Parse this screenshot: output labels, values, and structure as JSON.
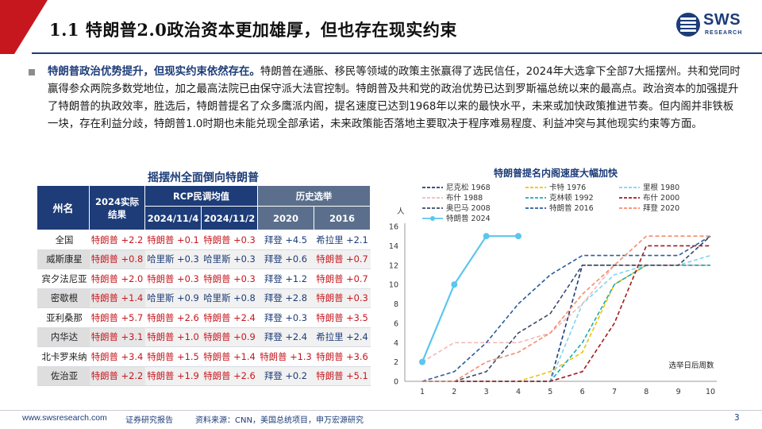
{
  "header": {
    "title": "1.1 特朗普2.0政治资本更加雄厚，但也存在现实约束",
    "logo_text": "SWS",
    "logo_sub": "RESEARCH"
  },
  "summary": {
    "lead": "特朗普政治优势提升，但现实约束依然存在。",
    "body": "特朗普在通胀、移民等领域的政策主张赢得了选民信任，2024年大选拿下全部7大摇摆州。共和党同时赢得参众两院多数党地位，加之最高法院已由保守派大法官控制。特朗普及共和党的政治优势已达到罗斯福总统以来的最高点。政治资本的加强提升了特朗普的执政效率，胜选后，特朗普提名了众多鹰派内阁，提名速度已达到1968年以来的最快水平，未来或加快政策推进节奏。但内阁并非铁板一块，存在利益分歧，特朗普1.0时期也未能兑现全部承诺，未来政策能否落地主要取决于程序难易程度、利益冲突与其他现实约束等方面。"
  },
  "table": {
    "title": "摇摆州全面倒向特朗普",
    "headers": {
      "state": "州名",
      "result_2024": "2024实际结果",
      "rcp": "RCP民调均值",
      "history": "历史选举",
      "rcp_1": "2024/11/4",
      "rcp_2": "2024/11/2",
      "hist_1": "2020",
      "hist_2": "2016"
    },
    "rows": [
      {
        "state": "全国",
        "r2024": "特朗普 +2.2",
        "p1": "特朗普 +0.1",
        "p2": "特朗普 +0.3",
        "h2020": "拜登 +4.5",
        "h2016": "希拉里 +2.1"
      },
      {
        "state": "威斯康星",
        "r2024": "特朗普 +0.8",
        "p1": "哈里斯 +0.3",
        "p2": "哈里斯 +0.3",
        "h2020": "拜登 +0.6",
        "h2016": "特朗普 +0.7"
      },
      {
        "state": "宾夕法尼亚",
        "r2024": "特朗普 +2.0",
        "p1": "特朗普 +0.3",
        "p2": "特朗普 +0.3",
        "h2020": "拜登 +1.2",
        "h2016": "特朗普 +0.7"
      },
      {
        "state": "密歇根",
        "r2024": "特朗普 +1.4",
        "p1": "哈里斯 +0.9",
        "p2": "哈里斯 +0.8",
        "h2020": "拜登 +2.8",
        "h2016": "特朗普 +0.3"
      },
      {
        "state": "亚利桑那",
        "r2024": "特朗普 +5.7",
        "p1": "特朗普 +2.6",
        "p2": "特朗普 +2.4",
        "h2020": "拜登 +0.3",
        "h2016": "特朗普 +3.5"
      },
      {
        "state": "内华达",
        "r2024": "特朗普 +3.1",
        "p1": "特朗普 +1.0",
        "p2": "特朗普 +0.9",
        "h2020": "拜登 +2.4",
        "h2016": "希拉里 +2.4"
      },
      {
        "state": "北卡罗来纳",
        "r2024": "特朗普 +3.4",
        "p1": "特朗普 +1.5",
        "p2": "特朗普 +1.4",
        "h2020": "特朗普 +1.3",
        "h2016": "特朗普 +3.6"
      },
      {
        "state": "佐治亚",
        "r2024": "特朗普 +2.2",
        "p1": "特朗普 +1.9",
        "p2": "特朗普 +2.6",
        "h2020": "拜登 +0.2",
        "h2016": "特朗普 +5.1"
      }
    ],
    "colors": {
      "trump": "#c6171e",
      "dem": "#1d3c78"
    }
  },
  "chart_data": {
    "type": "line",
    "title": "特朗普提名内阁速度大幅加快",
    "ylabel": "人",
    "xlabel": "选举日后周数",
    "x": [
      1,
      2,
      3,
      4,
      5,
      6,
      7,
      8,
      9,
      10
    ],
    "ylim": [
      0,
      16
    ],
    "yticks": [
      0,
      2,
      4,
      6,
      8,
      10,
      12,
      14,
      16
    ],
    "grid": false,
    "legend_position": "top",
    "series": [
      {
        "name": "尼克松 1968",
        "color": "#1d3c78",
        "dash": "dash",
        "values": [
          0,
          0,
          0,
          0,
          0,
          12,
          12,
          12,
          12,
          12
        ]
      },
      {
        "name": "卡特 1976",
        "color": "#f2c200",
        "dash": "dash",
        "values": [
          0,
          0,
          0,
          0,
          1,
          3,
          10,
          12,
          12,
          12
        ]
      },
      {
        "name": "里根 1980",
        "color": "#7fd4ee",
        "dash": "dash",
        "values": [
          0,
          0,
          0,
          0,
          0,
          8,
          11,
          12,
          12,
          13
        ]
      },
      {
        "name": "布什 1988",
        "color": "#f2b8b8",
        "dash": "dash",
        "values": [
          2,
          4,
          4,
          4,
          5,
          8,
          12,
          12,
          12,
          12
        ]
      },
      {
        "name": "克林顿 1992",
        "color": "#1aa9b5",
        "dash": "dash",
        "values": [
          0,
          0,
          0,
          0,
          0,
          4,
          10,
          12,
          12,
          12
        ]
      },
      {
        "name": "布什 2000",
        "color": "#a3191f",
        "dash": "dash",
        "values": [
          0,
          0,
          0,
          0,
          0,
          1,
          6,
          14,
          14,
          14
        ]
      },
      {
        "name": "奥巴马 2008",
        "color": "#3a4a6b",
        "dash": "dash",
        "values": [
          0,
          0,
          1,
          5,
          7,
          12,
          12,
          12,
          12,
          15
        ]
      },
      {
        "name": "特朗普 2016",
        "color": "#2b5c9c",
        "dash": "dash",
        "values": [
          0,
          1,
          4,
          8,
          11,
          13,
          13,
          13,
          13,
          15
        ]
      },
      {
        "name": "拜登 2020",
        "color": "#f28c6b",
        "dash": "dash",
        "values": [
          0,
          0,
          2,
          3,
          5,
          9,
          12,
          15,
          15,
          15
        ]
      },
      {
        "name": "特朗普 2024",
        "color": "#5bc6ee",
        "dash": "solid",
        "marker": "circle",
        "values": [
          2,
          10,
          15,
          15,
          null,
          null,
          null,
          null,
          null,
          null
        ]
      }
    ]
  },
  "footer": {
    "url": "www.swsresearch.com",
    "label": "证券研究报告",
    "source": "资料来源：CNN，美国总统项目，申万宏源研究",
    "page": "3"
  }
}
